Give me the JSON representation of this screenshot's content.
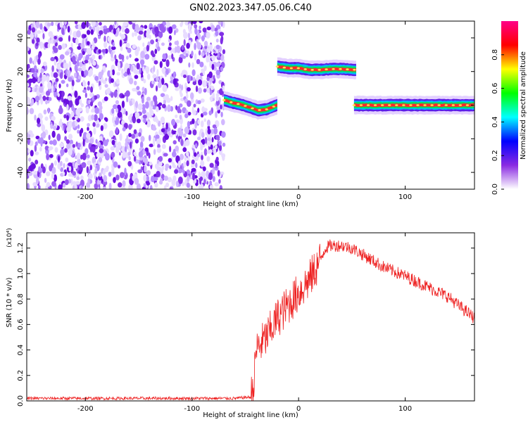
{
  "title": "GN02.2023.347.05.06.C40",
  "chart_data": [
    {
      "type": "heatmap",
      "xlabel": "Height of straight line (km)",
      "ylabel": "Frequency (Hz)",
      "xlim": [
        -255,
        165
      ],
      "ylim": [
        -50,
        50
      ],
      "x_ticks": [
        -200,
        -100,
        0,
        100
      ],
      "x_tick_labels": [
        "-200",
        "-100",
        "0",
        "100"
      ],
      "y_ticks": [
        -40,
        -20,
        0,
        20,
        40
      ],
      "y_tick_labels": [
        "-40",
        "-20",
        "0",
        "20",
        "40"
      ],
      "noise_region_x": [
        -255,
        -70
      ],
      "segments": [
        {
          "x": [
            -70,
            -62,
            -52,
            -45,
            -38,
            -30,
            -22,
            -20
          ],
          "freq": [
            3,
            1.5,
            0,
            -1.5,
            -3,
            -2.5,
            -0.5,
            0
          ]
        },
        {
          "x": [
            -20,
            -10,
            0,
            10,
            20,
            30,
            40,
            54
          ],
          "freq": [
            23,
            22,
            22,
            21,
            21,
            21.5,
            21.5,
            21
          ]
        },
        {
          "x": [
            52,
            70,
            90,
            110,
            130,
            150,
            165
          ],
          "freq": [
            0,
            0,
            0,
            0,
            0,
            0,
            0
          ]
        }
      ],
      "colorbar": {
        "label": "Normalized spectral amplitude",
        "range": [
          0,
          1
        ],
        "ticks": [
          0.0,
          0.2,
          0.4,
          0.6,
          0.8
        ],
        "tick_labels": [
          "0.0",
          "0.2",
          "0.4",
          "0.6",
          "0.8"
        ],
        "colors": [
          "#ffffff",
          "#8a2be2",
          "#0000ff",
          "#00ffff",
          "#00ff00",
          "#ffff00",
          "#ff0000",
          "#ff0088"
        ]
      }
    },
    {
      "type": "line",
      "xlabel": "Height of straight line (km)",
      "ylabel": "SNR (10 * v/v)",
      "y_multiplier": "(x10⁴)",
      "xlim": [
        -255,
        165
      ],
      "ylim": [
        0,
        1.32
      ],
      "x_ticks": [
        -200,
        -100,
        0,
        100
      ],
      "x_tick_labels": [
        "-200",
        "-100",
        "0",
        "100"
      ],
      "y_ticks": [
        0.0,
        0.2,
        0.4,
        0.6,
        0.8,
        1.0,
        1.2
      ],
      "y_tick_labels": [
        "0.0",
        "0.2",
        "0.4",
        "0.6",
        "0.8",
        "1.0",
        "1.2"
      ],
      "line_color": "#ee2222",
      "series": [
        {
          "x": [
            -255,
            -200,
            -150,
            -100,
            -60,
            -45,
            -42,
            -40,
            -35,
            -30,
            -20,
            -10,
            0,
            10,
            20,
            25,
            30,
            40,
            50,
            60,
            70,
            80,
            100,
            120,
            140,
            150,
            165
          ],
          "y": [
            0.02,
            0.02,
            0.02,
            0.02,
            0.02,
            0.03,
            0.12,
            0.4,
            0.45,
            0.5,
            0.65,
            0.75,
            0.85,
            0.95,
            1.1,
            1.2,
            1.22,
            1.22,
            1.2,
            1.15,
            1.1,
            1.05,
            0.98,
            0.9,
            0.82,
            0.75,
            0.65
          ]
        }
      ]
    }
  ]
}
